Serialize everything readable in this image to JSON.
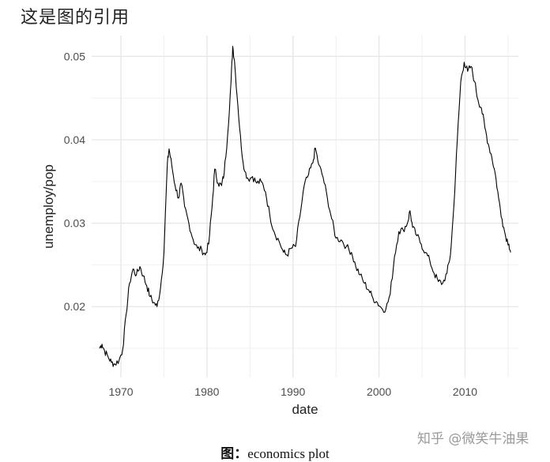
{
  "heading": "这是图的引用",
  "caption": {
    "prefix": "图：",
    "text": "economics plot"
  },
  "watermark": "知乎 @微笑牛油果",
  "chart_data": {
    "type": "line",
    "xlabel": "date",
    "ylabel": "unemploy/pop",
    "xlim": [
      1966.6,
      2016.2
    ],
    "ylim": [
      0.0115,
      0.0525
    ],
    "x_ticks": [
      1970,
      1980,
      1990,
      2000,
      2010
    ],
    "y_ticks": [
      0.02,
      0.03,
      0.04,
      0.05
    ],
    "grid": true,
    "line_color": "#000000",
    "series": [
      {
        "points": [
          [
            1967.5,
            0.015
          ],
          [
            1967.8,
            0.0155
          ],
          [
            1968.1,
            0.0147
          ],
          [
            1968.5,
            0.014
          ],
          [
            1968.9,
            0.0133
          ],
          [
            1969.3,
            0.0131
          ],
          [
            1969.8,
            0.0136
          ],
          [
            1970.2,
            0.0148
          ],
          [
            1970.6,
            0.019
          ],
          [
            1971.0,
            0.0228
          ],
          [
            1971.4,
            0.0245
          ],
          [
            1971.8,
            0.0238
          ],
          [
            1972.2,
            0.0248
          ],
          [
            1972.6,
            0.0237
          ],
          [
            1973.0,
            0.0225
          ],
          [
            1973.4,
            0.0212
          ],
          [
            1973.8,
            0.0205
          ],
          [
            1974.2,
            0.02
          ],
          [
            1974.6,
            0.0222
          ],
          [
            1975.0,
            0.0265
          ],
          [
            1975.4,
            0.0372
          ],
          [
            1975.6,
            0.0389
          ],
          [
            1975.9,
            0.037
          ],
          [
            1976.3,
            0.0345
          ],
          [
            1976.7,
            0.033
          ],
          [
            1977.0,
            0.0348
          ],
          [
            1977.4,
            0.032
          ],
          [
            1977.9,
            0.03
          ],
          [
            1978.4,
            0.028
          ],
          [
            1978.9,
            0.027
          ],
          [
            1979.4,
            0.0268
          ],
          [
            1979.8,
            0.0262
          ],
          [
            1980.2,
            0.0275
          ],
          [
            1980.6,
            0.032
          ],
          [
            1980.9,
            0.0365
          ],
          [
            1981.3,
            0.0348
          ],
          [
            1981.7,
            0.0345
          ],
          [
            1982.0,
            0.036
          ],
          [
            1982.4,
            0.0405
          ],
          [
            1982.8,
            0.047
          ],
          [
            1983.0,
            0.0512
          ],
          [
            1983.2,
            0.0495
          ],
          [
            1983.6,
            0.044
          ],
          [
            1984.0,
            0.039
          ],
          [
            1984.4,
            0.0362
          ],
          [
            1984.8,
            0.0353
          ],
          [
            1985.3,
            0.0356
          ],
          [
            1985.8,
            0.0348
          ],
          [
            1986.3,
            0.035
          ],
          [
            1986.8,
            0.0338
          ],
          [
            1987.3,
            0.031
          ],
          [
            1987.8,
            0.029
          ],
          [
            1988.4,
            0.0278
          ],
          [
            1988.9,
            0.0265
          ],
          [
            1989.3,
            0.0262
          ],
          [
            1989.8,
            0.027
          ],
          [
            1990.3,
            0.0272
          ],
          [
            1990.8,
            0.0308
          ],
          [
            1991.3,
            0.0345
          ],
          [
            1991.8,
            0.0358
          ],
          [
            1992.3,
            0.0372
          ],
          [
            1992.6,
            0.039
          ],
          [
            1993.0,
            0.037
          ],
          [
            1993.5,
            0.0355
          ],
          [
            1994.0,
            0.033
          ],
          [
            1994.5,
            0.0305
          ],
          [
            1995.0,
            0.0282
          ],
          [
            1995.6,
            0.028
          ],
          [
            1996.2,
            0.0272
          ],
          [
            1996.8,
            0.0265
          ],
          [
            1997.3,
            0.0248
          ],
          [
            1997.8,
            0.0238
          ],
          [
            1998.3,
            0.0228
          ],
          [
            1998.8,
            0.022
          ],
          [
            1999.3,
            0.021
          ],
          [
            1999.8,
            0.0205
          ],
          [
            2000.3,
            0.0198
          ],
          [
            2000.8,
            0.0197
          ],
          [
            2001.3,
            0.0215
          ],
          [
            2001.8,
            0.026
          ],
          [
            2002.3,
            0.029
          ],
          [
            2002.8,
            0.0292
          ],
          [
            2003.3,
            0.03
          ],
          [
            2003.6,
            0.0315
          ],
          [
            2003.9,
            0.0295
          ],
          [
            2004.4,
            0.0285
          ],
          [
            2004.9,
            0.0275
          ],
          [
            2005.4,
            0.0265
          ],
          [
            2005.9,
            0.0255
          ],
          [
            2006.4,
            0.024
          ],
          [
            2006.9,
            0.023
          ],
          [
            2007.4,
            0.0228
          ],
          [
            2007.9,
            0.024
          ],
          [
            2008.3,
            0.0262
          ],
          [
            2008.7,
            0.032
          ],
          [
            2009.1,
            0.04
          ],
          [
            2009.5,
            0.047
          ],
          [
            2009.9,
            0.0493
          ],
          [
            2010.3,
            0.0482
          ],
          [
            2010.7,
            0.0488
          ],
          [
            2011.1,
            0.047
          ],
          [
            2011.5,
            0.0448
          ],
          [
            2011.9,
            0.0438
          ],
          [
            2012.3,
            0.0415
          ],
          [
            2012.7,
            0.0395
          ],
          [
            2013.1,
            0.038
          ],
          [
            2013.5,
            0.036
          ],
          [
            2013.9,
            0.033
          ],
          [
            2014.3,
            0.0305
          ],
          [
            2014.7,
            0.0285
          ],
          [
            2015.1,
            0.0275
          ],
          [
            2015.3,
            0.0265
          ]
        ]
      }
    ]
  }
}
